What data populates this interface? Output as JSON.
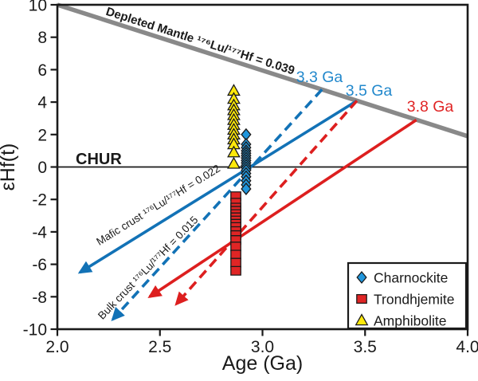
{
  "chart_data": {
    "type": "scatter",
    "title": "",
    "xlabel": "Age (Ga)",
    "ylabel": "εHf(t)",
    "xlim": [
      2.0,
      4.0
    ],
    "ylim": [
      -10,
      10
    ],
    "grid": false,
    "legend_position": "lower right",
    "xticks": [
      {
        "v": 2.0,
        "label": "2.0"
      },
      {
        "v": 2.5,
        "label": "2.5"
      },
      {
        "v": 3.0,
        "label": "3.0"
      },
      {
        "v": 3.5,
        "label": "3.5"
      },
      {
        "v": 4.0,
        "label": "4.0"
      }
    ],
    "yticks": [
      {
        "v": -10,
        "label": "-10"
      },
      {
        "v": -8,
        "label": "-8"
      },
      {
        "v": -6,
        "label": "-6"
      },
      {
        "v": -4,
        "label": "-4"
      },
      {
        "v": -2,
        "label": "-2"
      },
      {
        "v": 0,
        "label": "0"
      },
      {
        "v": 2,
        "label": "2"
      },
      {
        "v": 4,
        "label": "4"
      },
      {
        "v": 6,
        "label": "6"
      },
      {
        "v": 8,
        "label": "8"
      },
      {
        "v": 10,
        "label": "10"
      }
    ],
    "series": [
      {
        "name": "Charnockite",
        "marker": "diamond",
        "color": "#2196DC",
        "age": 2.92,
        "ehf": [
          2.0,
          1.4,
          1.2,
          1.0,
          0.85,
          0.7,
          0.55,
          0.4,
          0.25,
          0.1,
          -0.05,
          -0.2,
          -0.4,
          -0.6,
          -0.85,
          -1.1,
          -1.35
        ]
      },
      {
        "name": "Trondhjemite",
        "marker": "square",
        "color": "#E02525",
        "age": 2.87,
        "ehf": [
          -1.8,
          -2.2,
          -2.5,
          -2.7,
          -2.9,
          -3.1,
          -3.3,
          -3.5,
          -3.7,
          -3.95,
          -4.2,
          -4.5,
          -4.9,
          -5.4,
          -5.9,
          -6.4
        ]
      },
      {
        "name": "Amphibolite",
        "marker": "triangle",
        "color": "#FFE90A",
        "age": 2.86,
        "ehf": [
          4.7,
          4.2,
          3.8,
          3.5,
          3.2,
          2.9,
          2.6,
          2.3,
          2.0,
          1.7,
          1.4,
          0.9,
          0.2
        ]
      }
    ],
    "lines": [
      {
        "name": "depleted-mantle-line",
        "style": "solid",
        "color": "#898989",
        "width": 5.5,
        "from": [
          2.0,
          10.0
        ],
        "to": [
          4.0,
          1.9
        ],
        "arrow": false
      },
      {
        "name": "chur-line",
        "style": "solid",
        "color": "#1a1a1a",
        "width": 1.8,
        "from": [
          2.0,
          0
        ],
        "to": [
          4.0,
          0
        ],
        "arrow": false
      },
      {
        "name": "charnockite-mafic-crust-3.5Ga-line",
        "style": "solid",
        "color": "#1272B6",
        "width": 3.6,
        "from": [
          3.46,
          4.08
        ],
        "to": [
          2.11,
          -6.5
        ],
        "arrow": true
      },
      {
        "name": "charnockite-bulk-crust-3.3Ga-line",
        "style": "dashed",
        "color": "#1272B6",
        "width": 3.6,
        "from": [
          3.29,
          4.78
        ],
        "to": [
          2.27,
          -9.4
        ],
        "arrow": true
      },
      {
        "name": "trondhjemite-mafic-crust-3.8Ga-line",
        "style": "solid",
        "color": "#DD1F1F",
        "width": 3.6,
        "from": [
          3.75,
          2.9
        ],
        "to": [
          2.45,
          -8.0
        ],
        "arrow": true
      },
      {
        "name": "trondhjemite-bulk-crust-3.5Ga-line",
        "style": "dashed",
        "color": "#DD1F1F",
        "width": 3.6,
        "from": [
          3.46,
          4.08
        ],
        "to": [
          2.58,
          -8.45
        ],
        "arrow": true
      }
    ],
    "annotations": [
      {
        "id": "depleted-mantle-label",
        "text": "Depleted Mantle ¹⁷⁶Lu/¹⁷⁷Hf = 0.039",
        "color": "#1a1a1a"
      },
      {
        "id": "chur-label",
        "text": "CHUR",
        "color": "#1a1a1a"
      },
      {
        "id": "age-3-3-label",
        "text": "3.3 Ga",
        "color": "#2288CC"
      },
      {
        "id": "age-3-5-label",
        "text": "3.5 Ga",
        "color": "#2288CC"
      },
      {
        "id": "age-3-8-label",
        "text": "3.8 Ga",
        "color": "#E02525"
      },
      {
        "id": "mafic-crust-label",
        "text": "Mafic crust ¹⁷⁶Lu/¹⁷⁷Hf = 0.022",
        "color": "#1a1a1a"
      },
      {
        "id": "bulk-crust-label",
        "text": "Bulk crust ¹⁷⁶Lu/¹⁷⁷Hf = 0.015",
        "color": "#1a1a1a"
      }
    ]
  },
  "legend": {
    "items": [
      {
        "label": "Charnockite",
        "marker": "diamond",
        "color": "#2196DC"
      },
      {
        "label": "Trondhjemite",
        "marker": "square",
        "color": "#E02525"
      },
      {
        "label": "Amphibolite",
        "marker": "triangle",
        "color": "#FFE90A"
      }
    ]
  }
}
